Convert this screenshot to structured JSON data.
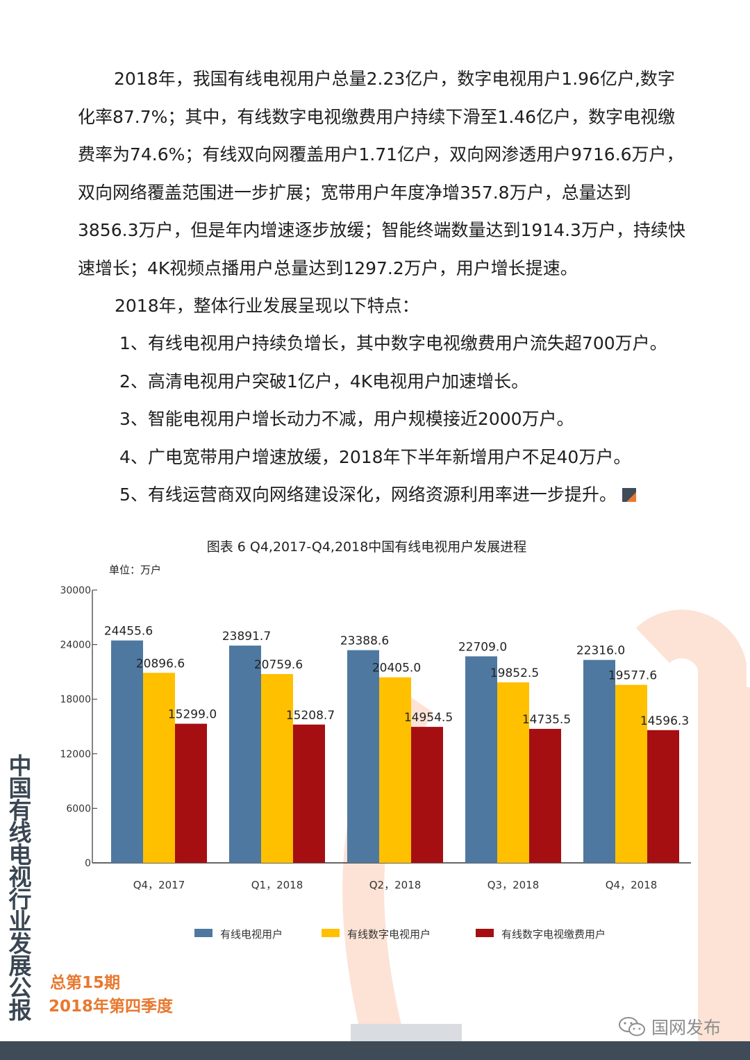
{
  "paragraphs": [
    "2018年，我国有线电视用户总量2.23亿户，数字电视用户1.96亿户,数字化率87.7%；其中，有线数字电视缴费用户持续下滑至1.46亿户，数字电视缴费率为74.6%；有线双向网覆盖用户1.71亿户，双向网渗透用户9716.6万户，双向网络覆盖范围进一步扩展；宽带用户年度净增357.8万户，总量达到3856.3万户，但是年内增速逐步放缓；智能终端数量达到1914.3万户，持续快速增长；4K视频点播用户总量达到1297.2万户，用户增长提速。"
  ],
  "features_intro": "2018年，整体行业发展呈现以下特点：",
  "features": [
    "1、有线电视用户持续负增长，其中数字电视缴费用户流失超700万户。",
    "2、高清电视用户突破1亿户，4K电视用户加速增长。",
    "3、智能电视用户增长动力不减，用户规模接近2000万户。",
    "4、广电宽带用户增速放缓，2018年下半年新增用户不足40万户。",
    "5、有线运营商双向网络建设深化，网络资源利用率进一步提升。"
  ],
  "chart_data": {
    "type": "bar",
    "title": "图表 6 Q4,2017-Q4,2018中国有线电视用户发展进程",
    "unit_label": "单位：万户",
    "categories": [
      "Q4，2017",
      "Q1，2018",
      "Q2，2018",
      "Q3，2018",
      "Q4，2018"
    ],
    "yticks": [
      "0",
      "6000",
      "12000",
      "18000",
      "24000",
      "30000"
    ],
    "ylim": [
      0,
      30000
    ],
    "legend_position": "bottom",
    "series": [
      {
        "name": "有线电视用户",
        "color": "#4e78a0",
        "values": [
          24455.6,
          23891.7,
          23388.6,
          22709.0,
          22316.0
        ],
        "labels": [
          "24455.6",
          "23891.7",
          "23388.6",
          "22709.0",
          "22316.0"
        ]
      },
      {
        "name": "有线数字电视用户",
        "color": "#ffc000",
        "values": [
          20896.6,
          20759.6,
          20405.0,
          19852.5,
          19577.6
        ],
        "labels": [
          "20896.6",
          "20759.6",
          "20405.0",
          "19852.5",
          "19577.6"
        ]
      },
      {
        "name": "有线数字电视缴费用户",
        "color": "#a50f12",
        "values": [
          15299.0,
          15208.7,
          14954.5,
          14735.5,
          14596.3
        ],
        "labels": [
          "15299.0",
          "15208.7",
          "14954.5",
          "14735.5",
          "14596.3"
        ]
      }
    ]
  },
  "sidebar_title": "中国有线电视行业发展公报",
  "issue": "总第15期",
  "quarter": "2018年第四季度",
  "watermark": "国网发布",
  "icons": {
    "watermark": "wechat-icon",
    "end_mark": "square-end-mark-icon"
  },
  "colors": {
    "accent": "#e8782f",
    "bar": "#3f4b57",
    "decor": "#fce3d6"
  }
}
